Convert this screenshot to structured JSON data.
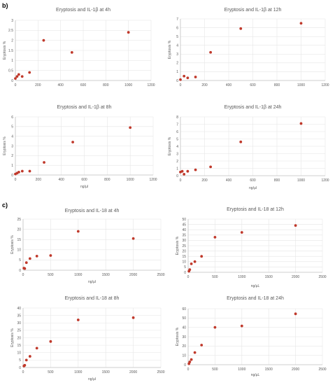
{
  "panels": {
    "b_label": "b)",
    "c_label": "c)"
  },
  "style": {
    "point_color": "#c0392b",
    "axis_color": "#bfbfbf",
    "grid_color": "#e6e6e6",
    "text_color": "#595959"
  },
  "chart_data": [
    {
      "type": "scatter",
      "title": "Eryptosis and IL-1β at 4h",
      "xlabel": "",
      "ylabel": "Eryptosis %",
      "xlim": [
        0,
        1200
      ],
      "xticks": [
        0,
        200,
        400,
        600,
        800,
        1000,
        1200
      ],
      "ylim": [
        0,
        3
      ],
      "yticks": [
        0,
        0.5,
        1,
        1.5,
        2,
        2.5,
        3
      ],
      "points": [
        [
          0,
          0.1
        ],
        [
          15,
          0.2
        ],
        [
          30,
          0.3
        ],
        [
          60,
          0.2
        ],
        [
          125,
          0.4
        ],
        [
          250,
          2.0
        ],
        [
          500,
          1.4
        ],
        [
          1000,
          2.4
        ]
      ]
    },
    {
      "type": "scatter",
      "title": "Eryptosis and IL-1β at 12h",
      "xlabel": "",
      "ylabel": "Eryptosis %",
      "xlim": [
        0,
        1200
      ],
      "xticks": [
        0,
        200,
        400,
        600,
        800,
        1000,
        1200
      ],
      "ylim": [
        0,
        7
      ],
      "yticks": [
        0,
        1,
        2,
        3,
        4,
        5,
        6,
        7
      ],
      "points": [
        [
          0,
          0.1
        ],
        [
          30,
          0.5
        ],
        [
          60,
          0.3
        ],
        [
          125,
          0.4
        ],
        [
          250,
          3.2
        ],
        [
          500,
          5.9
        ],
        [
          1000,
          6.5
        ]
      ]
    },
    {
      "type": "scatter",
      "title": "Eryptosis and IL-1β at 8h",
      "xlabel": "ng/µl",
      "ylabel": "Eryptosis %",
      "xlim": [
        0,
        1200
      ],
      "xticks": [
        0,
        200,
        400,
        600,
        800,
        1000,
        1200
      ],
      "ylim": [
        0,
        6
      ],
      "yticks": [
        0,
        1,
        2,
        3,
        4,
        5,
        6
      ],
      "points": [
        [
          0,
          0.1
        ],
        [
          15,
          0.2
        ],
        [
          30,
          0.3
        ],
        [
          60,
          0.4
        ],
        [
          125,
          0.4
        ],
        [
          250,
          1.3
        ],
        [
          500,
          3.4
        ],
        [
          1000,
          4.9
        ]
      ]
    },
    {
      "type": "scatter",
      "title": "Eryptosis and IL-1β at 24h",
      "xlabel": "ng/µl",
      "ylabel": "Eryptosis %",
      "xlim": [
        0,
        1200
      ],
      "xticks": [
        0,
        200,
        400,
        600,
        800,
        1000,
        1200
      ],
      "ylim": [
        0,
        8
      ],
      "yticks": [
        0,
        1,
        2,
        3,
        4,
        5,
        6,
        7,
        8
      ],
      "points": [
        [
          0,
          0.5
        ],
        [
          15,
          0.6
        ],
        [
          30,
          0.2
        ],
        [
          60,
          0.6
        ],
        [
          125,
          0.8
        ],
        [
          250,
          1.2
        ],
        [
          500,
          4.6
        ],
        [
          1000,
          7.1
        ]
      ]
    },
    {
      "type": "scatter",
      "title": "Eryptosis and IL-18 at 4h",
      "xlabel": "ng/µl",
      "ylabel": "Eryptosis %",
      "xlim": [
        0,
        2500
      ],
      "xticks": [
        0,
        500,
        1000,
        1500,
        2000,
        2500
      ],
      "ylim": [
        0,
        25
      ],
      "yticks": [
        0,
        5,
        10,
        15,
        20,
        25
      ],
      "points": [
        [
          15,
          1.0
        ],
        [
          30,
          0.8
        ],
        [
          60,
          3.7
        ],
        [
          125,
          5.7
        ],
        [
          250,
          6.9
        ],
        [
          500,
          7.2
        ],
        [
          1000,
          19.0
        ],
        [
          2000,
          15.5
        ]
      ]
    },
    {
      "type": "scatter",
      "title": "Eryptosis and IL-18 at 12h",
      "xlabel": "ng/µL",
      "ylabel": "Eryptosis %",
      "xlim": [
        0,
        2500
      ],
      "xticks": [
        0,
        500,
        1000,
        1500,
        2000,
        2500
      ],
      "ylim": [
        0,
        50
      ],
      "yticks": [
        0,
        5,
        10,
        15,
        20,
        25,
        30,
        35,
        40,
        45,
        50
      ],
      "points": [
        [
          15,
          1.0
        ],
        [
          30,
          2.5
        ],
        [
          60,
          8.0
        ],
        [
          125,
          10.0
        ],
        [
          250,
          15.0
        ],
        [
          500,
          33.0
        ],
        [
          1000,
          37.5
        ],
        [
          2000,
          44.0
        ]
      ]
    },
    {
      "type": "scatter",
      "title": "Eryptosis and IL-18 at 8h",
      "xlabel": "ng/µl",
      "ylabel": "Eryptosis %",
      "xlim": [
        0,
        2500
      ],
      "xticks": [
        0,
        500,
        1000,
        1500,
        2000,
        2500
      ],
      "ylim": [
        0,
        40
      ],
      "yticks": [
        0,
        5,
        10,
        15,
        20,
        25,
        30,
        35,
        40
      ],
      "points": [
        [
          15,
          1.0
        ],
        [
          30,
          1.5
        ],
        [
          60,
          5.0
        ],
        [
          125,
          7.5
        ],
        [
          250,
          13.0
        ],
        [
          500,
          17.5
        ],
        [
          1000,
          32.0
        ],
        [
          2000,
          33.5
        ]
      ]
    },
    {
      "type": "scatter",
      "title": "Eryptosis and IL-18 at 24h",
      "xlabel": "ng/µL",
      "ylabel": "Eryptosis %",
      "xlim": [
        0,
        2500
      ],
      "xticks": [
        0,
        500,
        1000,
        1500,
        2000,
        2500
      ],
      "ylim": [
        0,
        60
      ],
      "yticks": [
        0,
        10,
        20,
        30,
        40,
        50,
        60
      ],
      "points": [
        [
          15,
          1.0
        ],
        [
          30,
          3.0
        ],
        [
          60,
          5.5
        ],
        [
          125,
          13.0
        ],
        [
          250,
          21.0
        ],
        [
          500,
          40.0
        ],
        [
          1000,
          41.5
        ],
        [
          2000,
          54.5
        ]
      ]
    }
  ]
}
